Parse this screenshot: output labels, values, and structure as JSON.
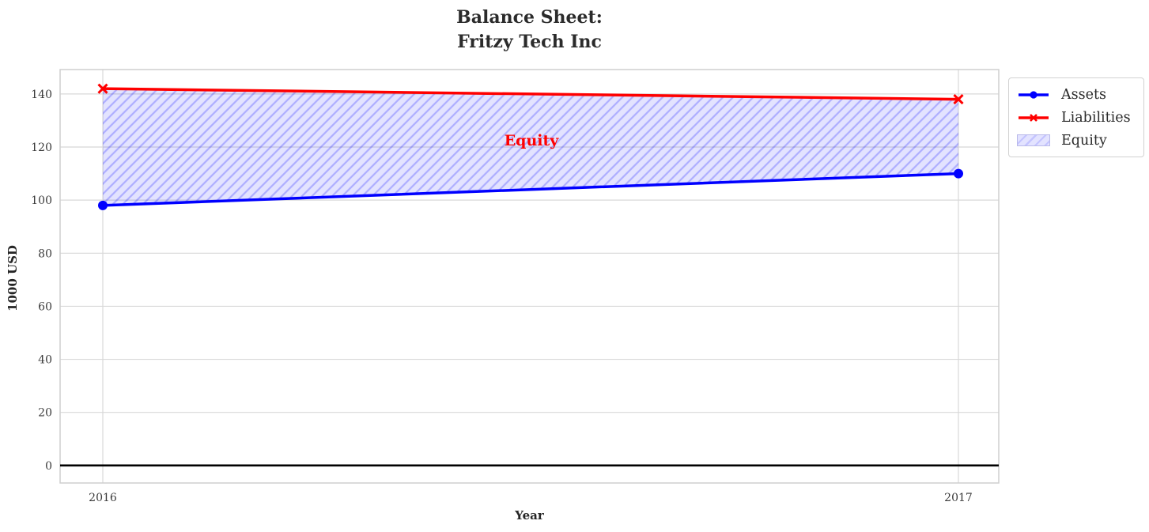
{
  "chart_data": {
    "type": "line",
    "title": "Balance Sheet:\nFritzy Tech Inc",
    "xlabel": "Year",
    "ylabel": "1000 USD",
    "categories": [
      "2016",
      "2017"
    ],
    "series": [
      {
        "name": "Assets",
        "values": [
          98,
          110
        ],
        "color": "#0000ff",
        "marker": "circle",
        "line_width": 3.5
      },
      {
        "name": "Liabilities",
        "values": [
          142,
          138
        ],
        "color": "#ff0000",
        "marker": "x",
        "line_width": 3.5
      }
    ],
    "area": {
      "name": "Equity",
      "between": [
        "Assets",
        "Liabilities"
      ],
      "fill_color": "#0000ff1c",
      "hatch_color": "#0000ff3b",
      "hatch_style": "diagonal-forward"
    },
    "annotation": {
      "text": "Equity",
      "color": "#ff0000"
    },
    "yticks": [
      0,
      20,
      40,
      60,
      80,
      100,
      120,
      140
    ],
    "ylim": [
      -6.6,
      149.2
    ],
    "grid": true,
    "grid_color": "#d8d8d8",
    "border_color": "#cfcfcf",
    "zero_line_color": "#000000",
    "tick_color": "#3a3a3a",
    "legend": {
      "position": "outside-upper-right",
      "entries": [
        "Assets",
        "Liabilities",
        "Equity"
      ]
    }
  }
}
